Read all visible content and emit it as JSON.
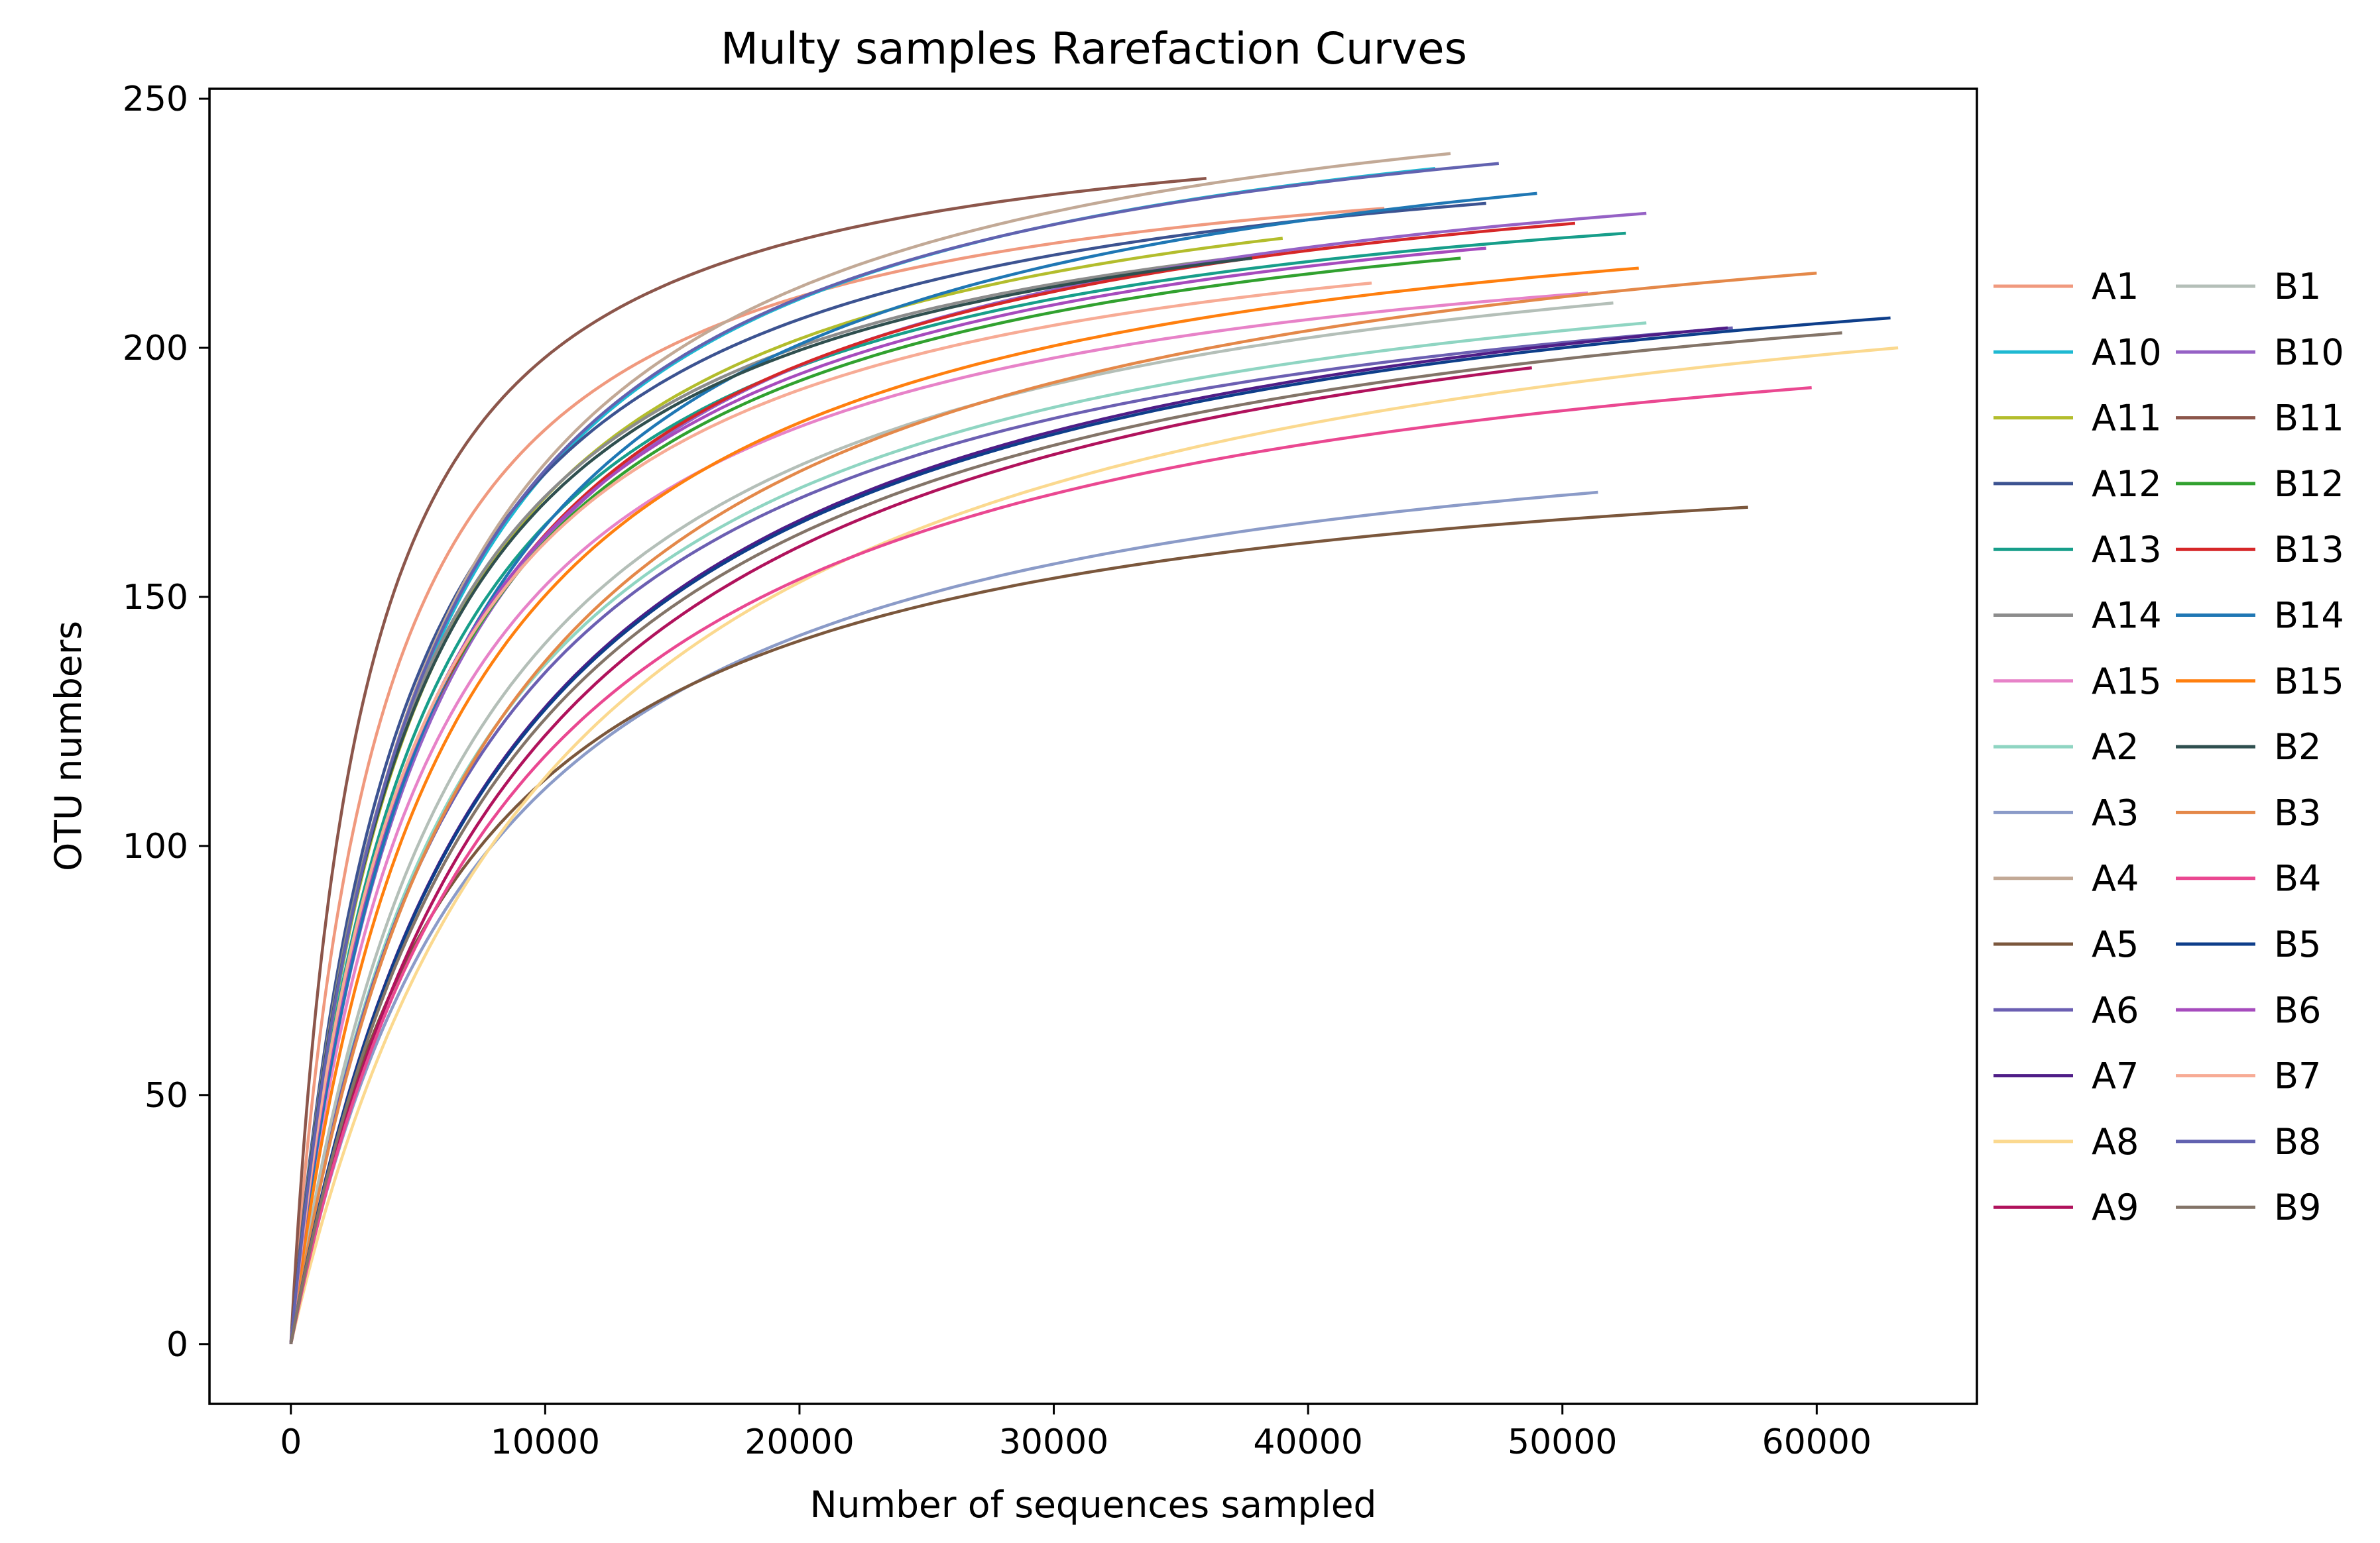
{
  "chart_data": {
    "type": "line",
    "title": "Multy samples Rarefaction Curves",
    "xlabel": "Number of sequences sampled",
    "ylabel": "OTU numbers",
    "xlim": [
      -3200,
      66300
    ],
    "ylim": [
      -12,
      252
    ],
    "xticks": [
      0,
      10000,
      20000,
      30000,
      40000,
      50000,
      60000
    ],
    "yticks": [
      0,
      50,
      100,
      150,
      200,
      250
    ],
    "grid": false,
    "legend_position": "right",
    "legend_columns": 2,
    "series": [
      {
        "name": "A1",
        "color": "#f0997e",
        "x_max": 43000,
        "y_end": 228,
        "half_sat": 3400
      },
      {
        "name": "A10",
        "color": "#1eb9d2",
        "x_max": 45000,
        "y_end": 236,
        "half_sat": 5000
      },
      {
        "name": "A11",
        "color": "#b3bd2c",
        "x_max": 39000,
        "y_end": 222,
        "half_sat": 4600
      },
      {
        "name": "A12",
        "color": "#3c5391",
        "x_max": 47000,
        "y_end": 229,
        "half_sat": 4300
      },
      {
        "name": "A13",
        "color": "#179e8a",
        "x_max": 52500,
        "y_end": 223,
        "half_sat": 4800
      },
      {
        "name": "A14",
        "color": "#8c8c8c",
        "x_max": 37000,
        "y_end": 218,
        "half_sat": 4300
      },
      {
        "name": "A15",
        "color": "#e782c8",
        "x_max": 51000,
        "y_end": 211,
        "half_sat": 5300
      },
      {
        "name": "A2",
        "color": "#8fd5c2",
        "x_max": 53300,
        "y_end": 205,
        "half_sat": 7000
      },
      {
        "name": "A3",
        "color": "#8b9bc8",
        "x_max": 51400,
        "y_end": 171,
        "half_sat": 7600
      },
      {
        "name": "A4",
        "color": "#c2a996",
        "x_max": 45600,
        "y_end": 239,
        "half_sat": 5000
      },
      {
        "name": "A5",
        "color": "#7b573c",
        "x_max": 57300,
        "y_end": 168,
        "half_sat": 6500
      },
      {
        "name": "A6",
        "color": "#6b5fb2",
        "x_max": 56700,
        "y_end": 204,
        "half_sat": 7000
      },
      {
        "name": "A7",
        "color": "#4f1d87",
        "x_max": 56500,
        "y_end": 204,
        "half_sat": 8300
      },
      {
        "name": "A8",
        "color": "#fbd98f",
        "x_max": 63200,
        "y_end": 200,
        "half_sat": 10500
      },
      {
        "name": "A9",
        "color": "#b0125c",
        "x_max": 48800,
        "y_end": 196,
        "half_sat": 9000
      },
      {
        "name": "B1",
        "color": "#b4bfb8",
        "x_max": 52000,
        "y_end": 209,
        "half_sat": 6800
      },
      {
        "name": "B10",
        "color": "#9561c5",
        "x_max": 53300,
        "y_end": 227,
        "half_sat": 5500
      },
      {
        "name": "B11",
        "color": "#8c564b",
        "x_max": 36000,
        "y_end": 234,
        "half_sat": 2700
      },
      {
        "name": "B12",
        "color": "#31a12f",
        "x_max": 46000,
        "y_end": 218,
        "half_sat": 5000
      },
      {
        "name": "B13",
        "color": "#d62728",
        "x_max": 50500,
        "y_end": 225,
        "half_sat": 5300
      },
      {
        "name": "B14",
        "color": "#1f77b4",
        "x_max": 49000,
        "y_end": 231,
        "half_sat": 5700
      },
      {
        "name": "B15",
        "color": "#ff7f0e",
        "x_max": 53000,
        "y_end": 216,
        "half_sat": 6000
      },
      {
        "name": "B2",
        "color": "#2f4f4f",
        "x_max": 37800,
        "y_end": 218,
        "half_sat": 4400
      },
      {
        "name": "B3",
        "color": "#e48849",
        "x_max": 60000,
        "y_end": 215,
        "half_sat": 7700
      },
      {
        "name": "B4",
        "color": "#ea4891",
        "x_max": 59800,
        "y_end": 192,
        "half_sat": 8600
      },
      {
        "name": "B5",
        "color": "#0e3e8a",
        "x_max": 62900,
        "y_end": 206,
        "half_sat": 8300
      },
      {
        "name": "B6",
        "color": "#a64bbd",
        "x_max": 47000,
        "y_end": 220,
        "half_sat": 5000
      },
      {
        "name": "B7",
        "color": "#f7ab95",
        "x_max": 42500,
        "y_end": 213,
        "half_sat": 4700
      },
      {
        "name": "B8",
        "color": "#6262b0",
        "x_max": 47500,
        "y_end": 237,
        "half_sat": 4900
      },
      {
        "name": "B9",
        "color": "#837468",
        "x_max": 61000,
        "y_end": 203,
        "half_sat": 8400
      }
    ]
  }
}
